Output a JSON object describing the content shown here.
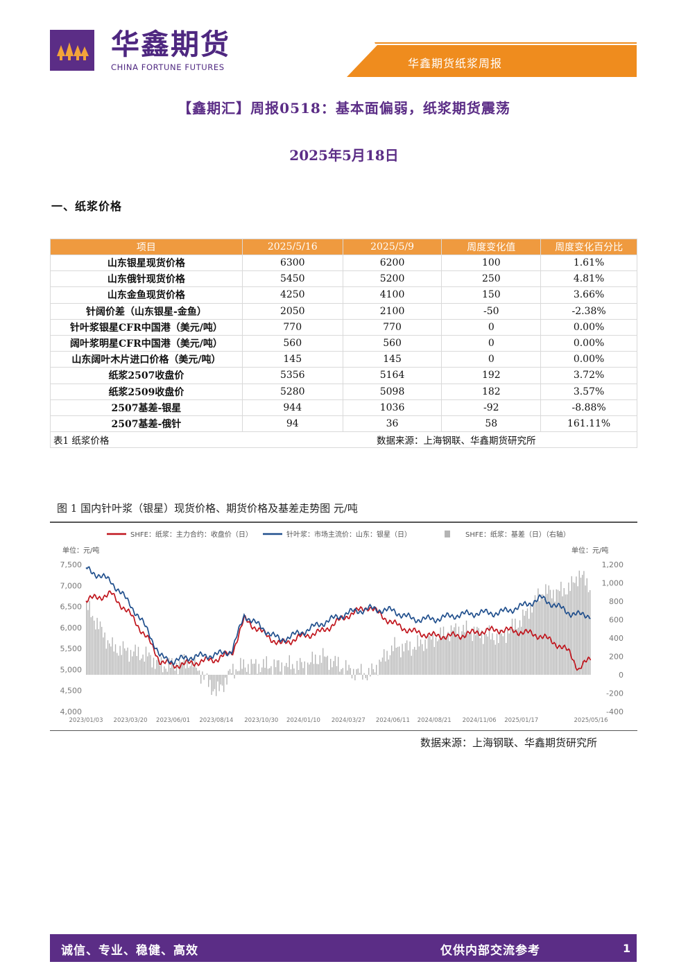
{
  "header": {
    "brand_cn": "华鑫期货",
    "brand_en": "CHINA FORTUNE FUTURES",
    "report_name": "华鑫期货纸浆周报",
    "logo_icon": "torch-logo-icon",
    "colors": {
      "purple": "#5b2d86",
      "orange": "#ef8c1e"
    }
  },
  "title": "【鑫期汇】周报0518：基本面偏弱，纸浆期货震荡",
  "date": "2025年5月18日",
  "section1": "一、纸浆价格",
  "table": {
    "headers": [
      "项目",
      "2025/5/16",
      "2025/5/9",
      "周度变化值",
      "周度变化百分比"
    ],
    "rows": [
      [
        "山东银星现货价格",
        "6300",
        "6200",
        "100",
        "1.61%"
      ],
      [
        "山东俄针现货价格",
        "5450",
        "5200",
        "250",
        "4.81%"
      ],
      [
        "山东金鱼现货价格",
        "4250",
        "4100",
        "150",
        "3.66%"
      ],
      [
        "针阔价差（山东银星-金鱼）",
        "2050",
        "2100",
        "-50",
        "-2.38%"
      ],
      [
        "针叶浆银星CFR中国港（美元/吨）",
        "770",
        "770",
        "0",
        "0.00%"
      ],
      [
        "阔叶浆明星CFR中国港（美元/吨）",
        "560",
        "560",
        "0",
        "0.00%"
      ],
      [
        "山东阔叶木片进口价格（美元/吨）",
        "145",
        "145",
        "0",
        "0.00%"
      ],
      [
        "纸浆2507收盘价",
        "5356",
        "5164",
        "192",
        "3.72%"
      ],
      [
        "纸浆2509收盘价",
        "5280",
        "5098",
        "182",
        "3.57%"
      ],
      [
        "2507基差-银星",
        "944",
        "1036",
        "-92",
        "-8.88%"
      ],
      [
        "2507基差-俄针",
        "94",
        "36",
        "58",
        "161.11%"
      ]
    ],
    "caption": "表1 纸浆价格",
    "source": "数据来源：上海钢联、华鑫期货研究所"
  },
  "figure": {
    "caption": "图 1 国内针叶浆（银星）现货价格、期货价格及基差走势图 元/吨",
    "source": "数据来源：上海钢联、华鑫期货研究所"
  },
  "chart_data": {
    "type": "line",
    "legend": [
      {
        "name": "SHFE：纸浆：主力合约：收盘价（日）",
        "color": "#c0141c",
        "kind": "line"
      },
      {
        "name": "针叶浆：市场主流价：山东：银星（日）",
        "color": "#1f4e8c",
        "kind": "line"
      },
      {
        "name": "SHFE：纸浆：基差（日）（右轴）",
        "color": "#b4b4b4",
        "kind": "bar"
      }
    ],
    "legend_position": "top",
    "left_unit": "单位：元/吨",
    "right_unit": "单位：元/吨",
    "left_ticks": [
      "7,500",
      "7,000",
      "6,500",
      "6,000",
      "5,500",
      "5,000",
      "4,500",
      "4,000"
    ],
    "right_ticks": [
      "1,200",
      "1,000",
      "800",
      "600",
      "400",
      "200",
      "0",
      "-200",
      "-400"
    ],
    "ylim_left": [
      4000,
      7500
    ],
    "ylim_right": [
      -400,
      1200
    ],
    "x_ticks": [
      "2023/01/03",
      "2023/03/20",
      "2023/06/01",
      "2023/08/14",
      "2023/10/30",
      "2024/01/10",
      "2024/03/27",
      "2024/06/11",
      "2024/08/21",
      "2024/11/06",
      "2025/01/17",
      "2025/05/16"
    ],
    "x_anchors": [
      "2023/01/03",
      "2023/02/15",
      "2023/03/20",
      "2023/04/20",
      "2023/05/10",
      "2023/06/01",
      "2023/07/01",
      "2023/08/14",
      "2023/09/10",
      "2023/10/01",
      "2023/10/30",
      "2023/12/01",
      "2024/01/10",
      "2024/02/10",
      "2024/03/27",
      "2024/05/01",
      "2024/06/11",
      "2024/07/15",
      "2024/08/21",
      "2024/09/30",
      "2024/11/06",
      "2024/12/10",
      "2025/01/17",
      "2025/02/20",
      "2025/03/20",
      "2025/04/10",
      "2025/04/25",
      "2025/05/16"
    ],
    "series": [
      {
        "name": "SHFE：纸浆：主力合约：收盘价（日）",
        "axis": "left",
        "color": "#c0141c",
        "values": [
          6650,
          6800,
          6300,
          5700,
          5200,
          5100,
          5150,
          5250,
          5400,
          6200,
          5900,
          5600,
          5800,
          5900,
          6300,
          6500,
          6100,
          5900,
          5800,
          5800,
          5900,
          5950,
          5900,
          5800,
          5600,
          5400,
          5000,
          5280
        ]
      },
      {
        "name": "针叶浆：市场主流价：山东：银星（日）",
        "axis": "left",
        "color": "#1f4e8c",
        "values": [
          7400,
          7100,
          6550,
          5900,
          5300,
          5200,
          5300,
          5350,
          5450,
          6300,
          6000,
          5700,
          5900,
          6100,
          6350,
          6450,
          6400,
          6200,
          6200,
          6300,
          6350,
          6350,
          6500,
          6700,
          6500,
          6350,
          6300,
          6300
        ]
      },
      {
        "name": "SHFE：纸浆：基差（日）（右轴）",
        "axis": "right",
        "color": "#b4b4b4",
        "values": [
          750,
          300,
          250,
          200,
          100,
          100,
          150,
          -200,
          50,
          100,
          100,
          100,
          100,
          200,
          50,
          0,
          300,
          300,
          400,
          500,
          450,
          400,
          600,
          900,
          900,
          950,
          1100,
          944
        ]
      }
    ]
  },
  "footer": {
    "motto": "诚信、专业、稳健、高效",
    "note": "仅供内部交流参考",
    "page": "1"
  }
}
